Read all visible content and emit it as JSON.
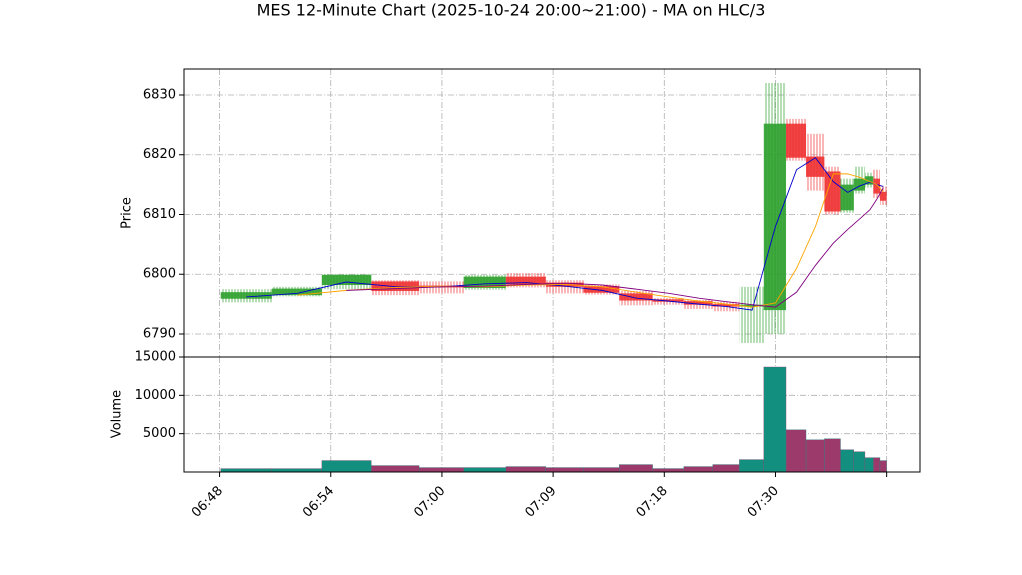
{
  "chart_data": [
    {
      "type": "candlestick",
      "title": "MES 12-Minute Chart (2025-10-24 20:00~21:00) - MA on HLC/3",
      "y_label": "Price",
      "x": [
        2.4,
        7.0,
        11.4,
        15.9,
        20.0,
        23.9,
        27.6,
        31.1,
        34.4,
        37.5,
        40.4,
        43.1,
        45.6,
        47.9,
        50.0,
        51.9,
        53.6,
        55.2,
        56.5,
        57.6,
        58.5,
        59.1,
        59.7
      ],
      "open": [
        6795.9,
        6796.5,
        6798.2,
        6798.8,
        6798.1,
        6797.7,
        6799.6,
        6798.6,
        6798.0,
        6796.8,
        6795.8,
        6795.5,
        6795.0,
        6794.6,
        6794.0,
        6825.2,
        6819.7,
        6817.2,
        6810.7,
        6814.0,
        6815.0,
        6816.0,
        6813.8
      ],
      "high": [
        6797.5,
        6797.9,
        6800.0,
        6799.0,
        6798.8,
        6799.9,
        6800.2,
        6799.0,
        6798.3,
        6797.2,
        6796.0,
        6795.7,
        6795.4,
        6797.9,
        6832.0,
        6826.0,
        6823.5,
        6818.0,
        6816.0,
        6818.0,
        6817.0,
        6817.5,
        6814.7
      ],
      "low": [
        6795.3,
        6796.3,
        6797.5,
        6796.5,
        6796.8,
        6797.4,
        6797.8,
        6796.8,
        6796.6,
        6794.8,
        6794.9,
        6794.2,
        6793.8,
        6788.5,
        6790.0,
        6819.0,
        6814.0,
        6810.0,
        6810.3,
        6813.5,
        6814.5,
        6812.8,
        6811.6
      ],
      "close": [
        6797.0,
        6797.6,
        6799.9,
        6797.2,
        6797.8,
        6799.6,
        6798.3,
        6797.9,
        6796.9,
        6795.6,
        6795.4,
        6794.9,
        6794.6,
        6794.9,
        6825.2,
        6819.5,
        6816.3,
        6810.5,
        6815.0,
        6816.0,
        6816.4,
        6813.5,
        6812.3
      ],
      "up_color": "#2ca02c",
      "down_color": "#f03030",
      "series": [
        {
          "color": "#0000cc",
          "values": [
            6796.2,
            6796.8,
            6798.7,
            6797.9,
            6797.9,
            6798.4,
            6798.6,
            6798.0,
            6797.3,
            6796.0,
            6795.5,
            6795.0,
            6794.6,
            6794.0,
            6808.0,
            6817.5,
            6819.5,
            6815.5,
            6813.7,
            6814.8,
            6815.4,
            6815.0,
            6814.7
          ]
        },
        {
          "color": "#ffa500",
          "values": [
            null,
            6796.5,
            6797.3,
            6797.8,
            6798.0,
            6797.9,
            6798.2,
            6798.3,
            6797.9,
            6797.0,
            6796.2,
            6795.5,
            6795.0,
            6794.5,
            6795.2,
            6801.0,
            6808.0,
            6816.8,
            6816.8,
            6816.2,
            6815.5,
            6815.0,
            6813.8
          ]
        },
        {
          "color": "#800080",
          "values": [
            null,
            null,
            6797.3,
            6797.6,
            6797.9,
            6798.0,
            6798.3,
            6798.5,
            6798.2,
            6797.5,
            6796.8,
            6796.0,
            6795.4,
            6794.9,
            6794.5,
            6797.0,
            6801.5,
            6805.2,
            6807.5,
            6809.3,
            6810.8,
            6812.5,
            6814.5
          ]
        }
      ],
      "xlim": [
        -3.2,
        63.0
      ],
      "xticks": [
        {
          "value": 0,
          "label": "06:48"
        },
        {
          "value": 10,
          "label": "06:54"
        },
        {
          "value": 20,
          "label": "07:00"
        },
        {
          "value": 30,
          "label": "07:09"
        },
        {
          "value": 40,
          "label": "07:18"
        },
        {
          "value": 50,
          "label": "07:30"
        },
        {
          "value": 60,
          "label": null
        }
      ],
      "ylim": [
        6786.15,
        6834.35
      ],
      "yticks": [
        6790,
        6800,
        6810,
        6820,
        6830
      ],
      "grid": true
    },
    {
      "type": "bar",
      "y_label": "Volume",
      "values": [
        450,
        450,
        1500,
        845,
        585,
        585,
        715,
        585,
        585,
        975,
        455,
        715,
        975,
        1625,
        13700,
        5520,
        4220,
        4350,
        2920,
        2660,
        1880,
        1880,
        1495
      ],
      "up_color": "#138f80",
      "down_color": "#9b3a6b",
      "ylim": [
        0,
        15000
      ],
      "yticks": [
        5000,
        10000,
        15000
      ],
      "grid": true
    }
  ]
}
